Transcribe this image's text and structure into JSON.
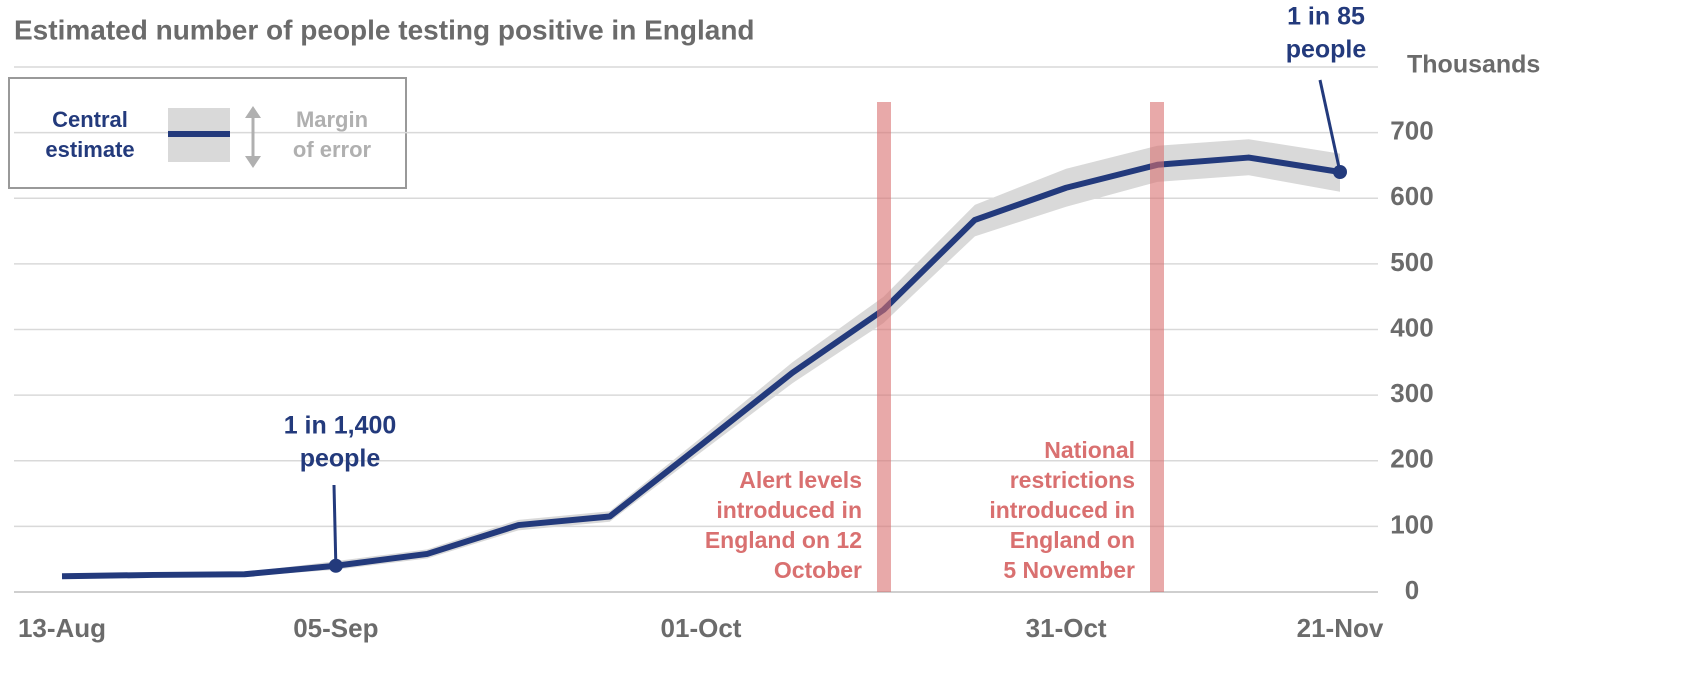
{
  "chart_data": {
    "type": "line",
    "title": "Estimated number of people testing positive in England",
    "y_axis_label": "Thousands",
    "categories": [
      "13-Aug",
      null,
      null,
      "05-Sep",
      null,
      null,
      null,
      "01-Oct",
      null,
      null,
      null,
      "31-Oct",
      null,
      null,
      "21-Nov"
    ],
    "series": [
      {
        "name": "Central estimate",
        "color": "#233a7c",
        "values": [
          24,
          26,
          27,
          40,
          58,
          102,
          115,
          224,
          334,
          430,
          567,
          616,
          651,
          662,
          640
        ]
      },
      {
        "name": "Margin of error",
        "color": "#d9d9d9",
        "upper": [
          27,
          29,
          30,
          47,
          65,
          110,
          123,
          235,
          350,
          450,
          590,
          645,
          680,
          690,
          668
        ],
        "lower": [
          21,
          23,
          24,
          34,
          51,
          94,
          107,
          213,
          318,
          410,
          542,
          587,
          625,
          635,
          610
        ]
      }
    ],
    "ylim": [
      0,
      800
    ],
    "yticks": [
      0,
      100,
      200,
      300,
      400,
      500,
      600,
      700
    ],
    "grid": true,
    "annotations": [
      {
        "lines": [
          "1 in 1,400",
          "people"
        ],
        "color": "#233a7c"
      },
      {
        "lines": [
          "1 in 85",
          "people"
        ],
        "color": "#233a7c"
      }
    ],
    "events": [
      {
        "lines": [
          "Alert levels",
          "introduced in",
          "England on 12",
          "October"
        ],
        "color": "#d97070"
      },
      {
        "lines": [
          "National",
          "restrictions",
          "introduced in",
          "England on",
          "5 November"
        ],
        "color": "#d97070"
      }
    ]
  }
}
